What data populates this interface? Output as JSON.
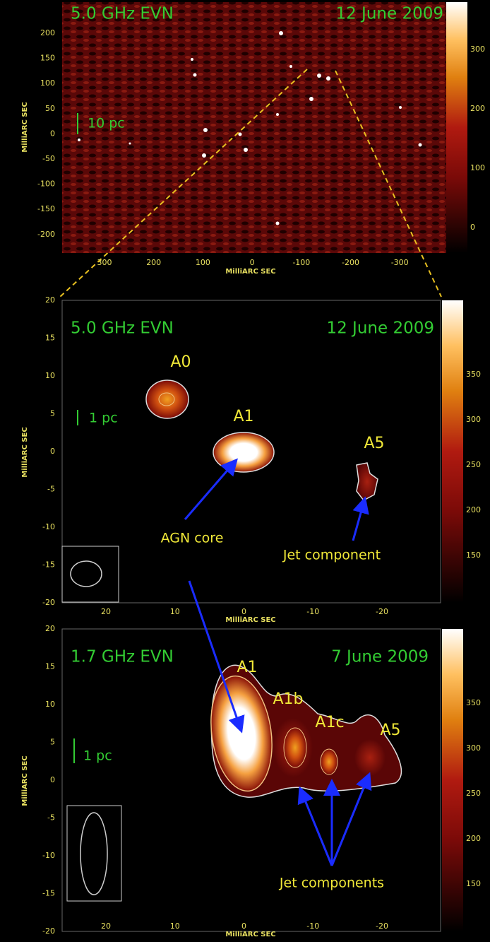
{
  "panels": [
    {
      "frequency": "5.0 GHz EVN",
      "date": "12 June 2009",
      "scale_bar": "10 pc",
      "xlabel": "MilliARC SEC",
      "ylabel": "MilliARC SEC",
      "xticks": [
        300,
        200,
        100,
        0,
        -100,
        -200,
        -300
      ],
      "yticks": [
        200,
        150,
        100,
        50,
        0,
        -50,
        -100,
        -150,
        -200
      ],
      "colorbar_ticks": [
        300,
        200,
        100,
        0
      ]
    },
    {
      "frequency": "5.0 GHz EVN",
      "date": "12 June 2009",
      "scale_bar": "1 pc",
      "xlabel": "MilliARC SEC",
      "ylabel": "MilliARC SEC",
      "xticks": [
        20,
        10,
        0,
        -10,
        -20
      ],
      "yticks": [
        20,
        15,
        10,
        5,
        0,
        -5,
        -10,
        -15,
        -20
      ],
      "colorbar_ticks": [
        350,
        300,
        250,
        200,
        150
      ],
      "components": [
        "A0",
        "A1",
        "A5"
      ],
      "annotations": [
        "AGN core",
        "Jet component"
      ]
    },
    {
      "frequency": "1.7 GHz EVN",
      "date": "7 June 2009",
      "scale_bar": "1 pc",
      "xlabel": "MilliARC SEC",
      "ylabel": "MilliARC SEC",
      "xticks": [
        20,
        10,
        0,
        -10,
        -20
      ],
      "yticks": [
        20,
        15,
        10,
        5,
        0,
        -5,
        -10,
        -15,
        -20
      ],
      "colorbar_ticks": [
        350,
        300,
        250,
        200,
        150
      ],
      "components": [
        "A1",
        "A1b",
        "A1c",
        "A5"
      ],
      "annotations": [
        "Jet components"
      ]
    }
  ]
}
